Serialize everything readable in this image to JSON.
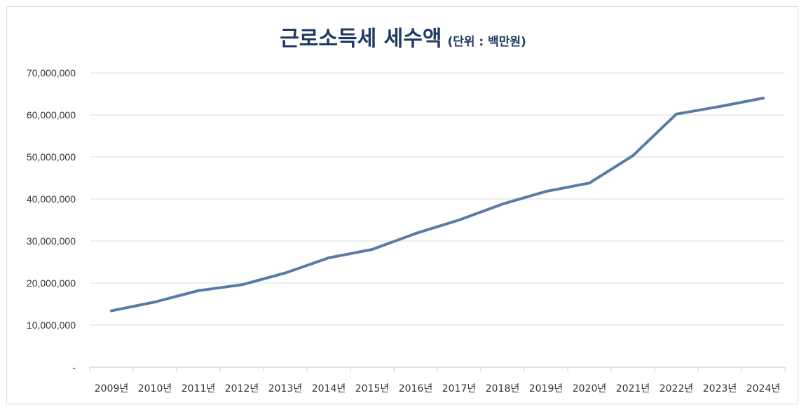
{
  "chart_data": {
    "type": "line",
    "title": "근로소득세 세수액",
    "subtitle": "(단위 : 백만원)",
    "categories": [
      "2009년",
      "2010년",
      "2011년",
      "2012년",
      "2013년",
      "2014년",
      "2015년",
      "2016년",
      "2017년",
      "2018년",
      "2019년",
      "2020년",
      "2021년",
      "2022년",
      "2023년",
      "2024년"
    ],
    "y_tick_labels": [
      "-",
      "10,000,000",
      "20,000,000",
      "30,000,000",
      "40,000,000",
      "50,000,000",
      "60,000,000",
      "70,000,000"
    ],
    "series": [
      {
        "values": [
          13400000,
          15500000,
          18200000,
          19600000,
          22400000,
          26000000,
          28000000,
          31800000,
          35000000,
          38800000,
          41800000,
          43800000,
          50300000,
          60200000,
          62000000,
          64000000
        ]
      }
    ],
    "ylim": [
      0,
      70000000
    ],
    "grid": true,
    "legend": "none",
    "colors": {
      "line": "#5b7aa8",
      "grid": "#d9dde6",
      "axis": "#c9c9c9",
      "title": "#1f3864"
    }
  }
}
